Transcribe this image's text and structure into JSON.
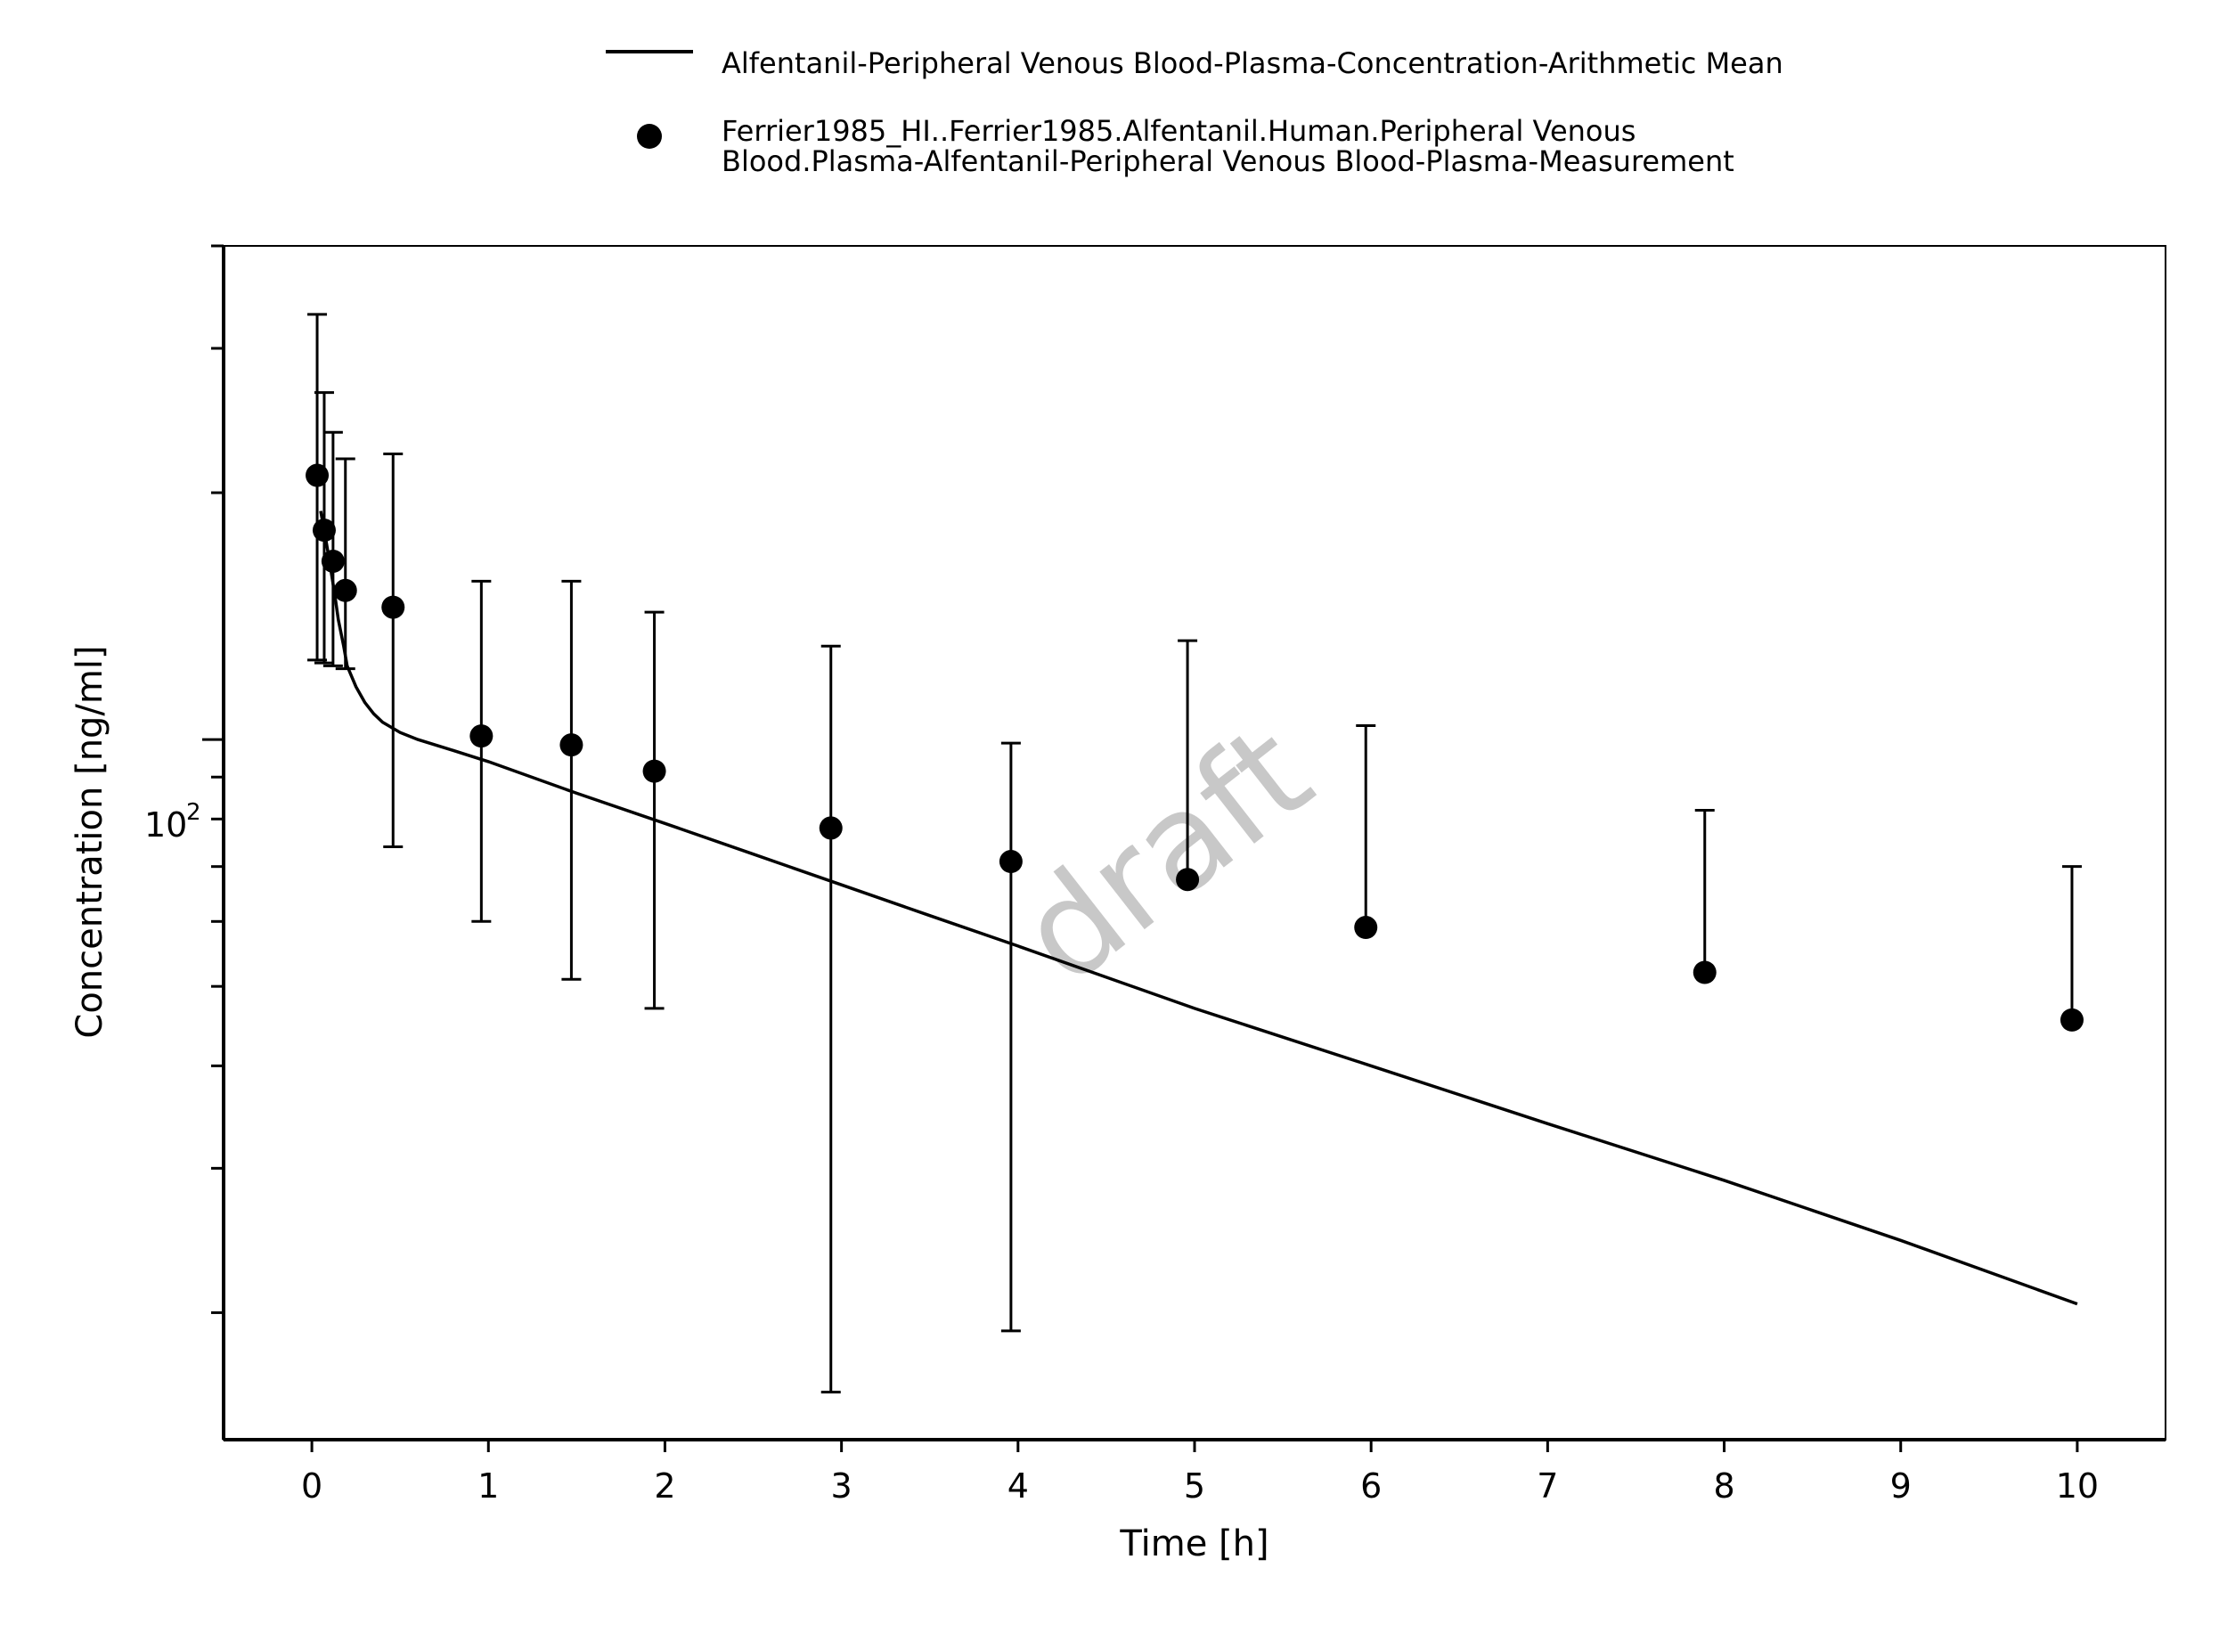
{
  "chart_data": {
    "type": "line",
    "xlabel": "Time [h]",
    "ylabel": "Concentration [ng/ml]",
    "xlim": [
      -0.5,
      10.5
    ],
    "ylim": [
      14,
      400
    ],
    "yscale": "log",
    "x_ticks": [
      "0",
      "1",
      "2",
      "3",
      "4",
      "5",
      "6",
      "7",
      "8",
      "9",
      "10"
    ],
    "y_tick_labels": [
      {
        "base": "10",
        "exponent": "2"
      }
    ],
    "grid": false,
    "legend_position": "top-center",
    "watermark": "draft",
    "series": [
      {
        "name": "Alfentanil-Peripheral Venous Blood-Plasma-Concentration-Arithmetic Mean",
        "style": "line",
        "color": "#000000",
        "x": [
          0.05,
          0.08,
          0.1,
          0.13,
          0.15,
          0.18,
          0.2,
          0.25,
          0.3,
          0.35,
          0.4,
          0.5,
          0.6,
          0.8,
          1.0,
          1.5,
          2.0,
          2.5,
          3.0,
          3.5,
          4.0,
          5.0,
          6.0,
          7.0,
          8.0,
          9.0,
          10.0
        ],
        "y": [
          190,
          175,
          165,
          150,
          140,
          130,
          123,
          116,
          111,
          107.5,
          105,
          102,
          100,
          97,
          94,
          86,
          79,
          72.5,
          66.5,
          61,
          56,
          47,
          40,
          34,
          29,
          24.5,
          20.5
        ]
      },
      {
        "name": "Ferrier1985_HI..Ferrier1985.Alfentanil.Human.Peripheral Venous Blood.Plasma-Alfentanil-Peripheral Venous Blood-Plasma-Measurement",
        "legend_lines": [
          "Ferrier1985_HI..Ferrier1985.Alfentanil.Human.Peripheral Venous",
          "Blood.Plasma-Alfentanil-Peripheral Venous Blood-Plasma-Measurement"
        ],
        "style": "markers",
        "color": "#000000",
        "x": [
          0.03,
          0.07,
          0.12,
          0.19,
          0.46,
          0.96,
          1.47,
          1.94,
          2.94,
          3.96,
          4.96,
          5.97,
          7.89,
          9.97
        ],
        "y": [
          210,
          180,
          165,
          152,
          145,
          101,
          98.5,
          91.5,
          78,
          71,
          67.5,
          59,
          52,
          45.5
        ],
        "error_low": [
          125,
          124,
          123,
          122,
          74,
          60,
          51,
          47,
          16,
          19,
          null,
          null,
          null,
          null
        ],
        "error_high": [
          330,
          265,
          237,
          220,
          223,
          156,
          156,
          143,
          130,
          99,
          132,
          104,
          82,
          70
        ]
      }
    ]
  }
}
